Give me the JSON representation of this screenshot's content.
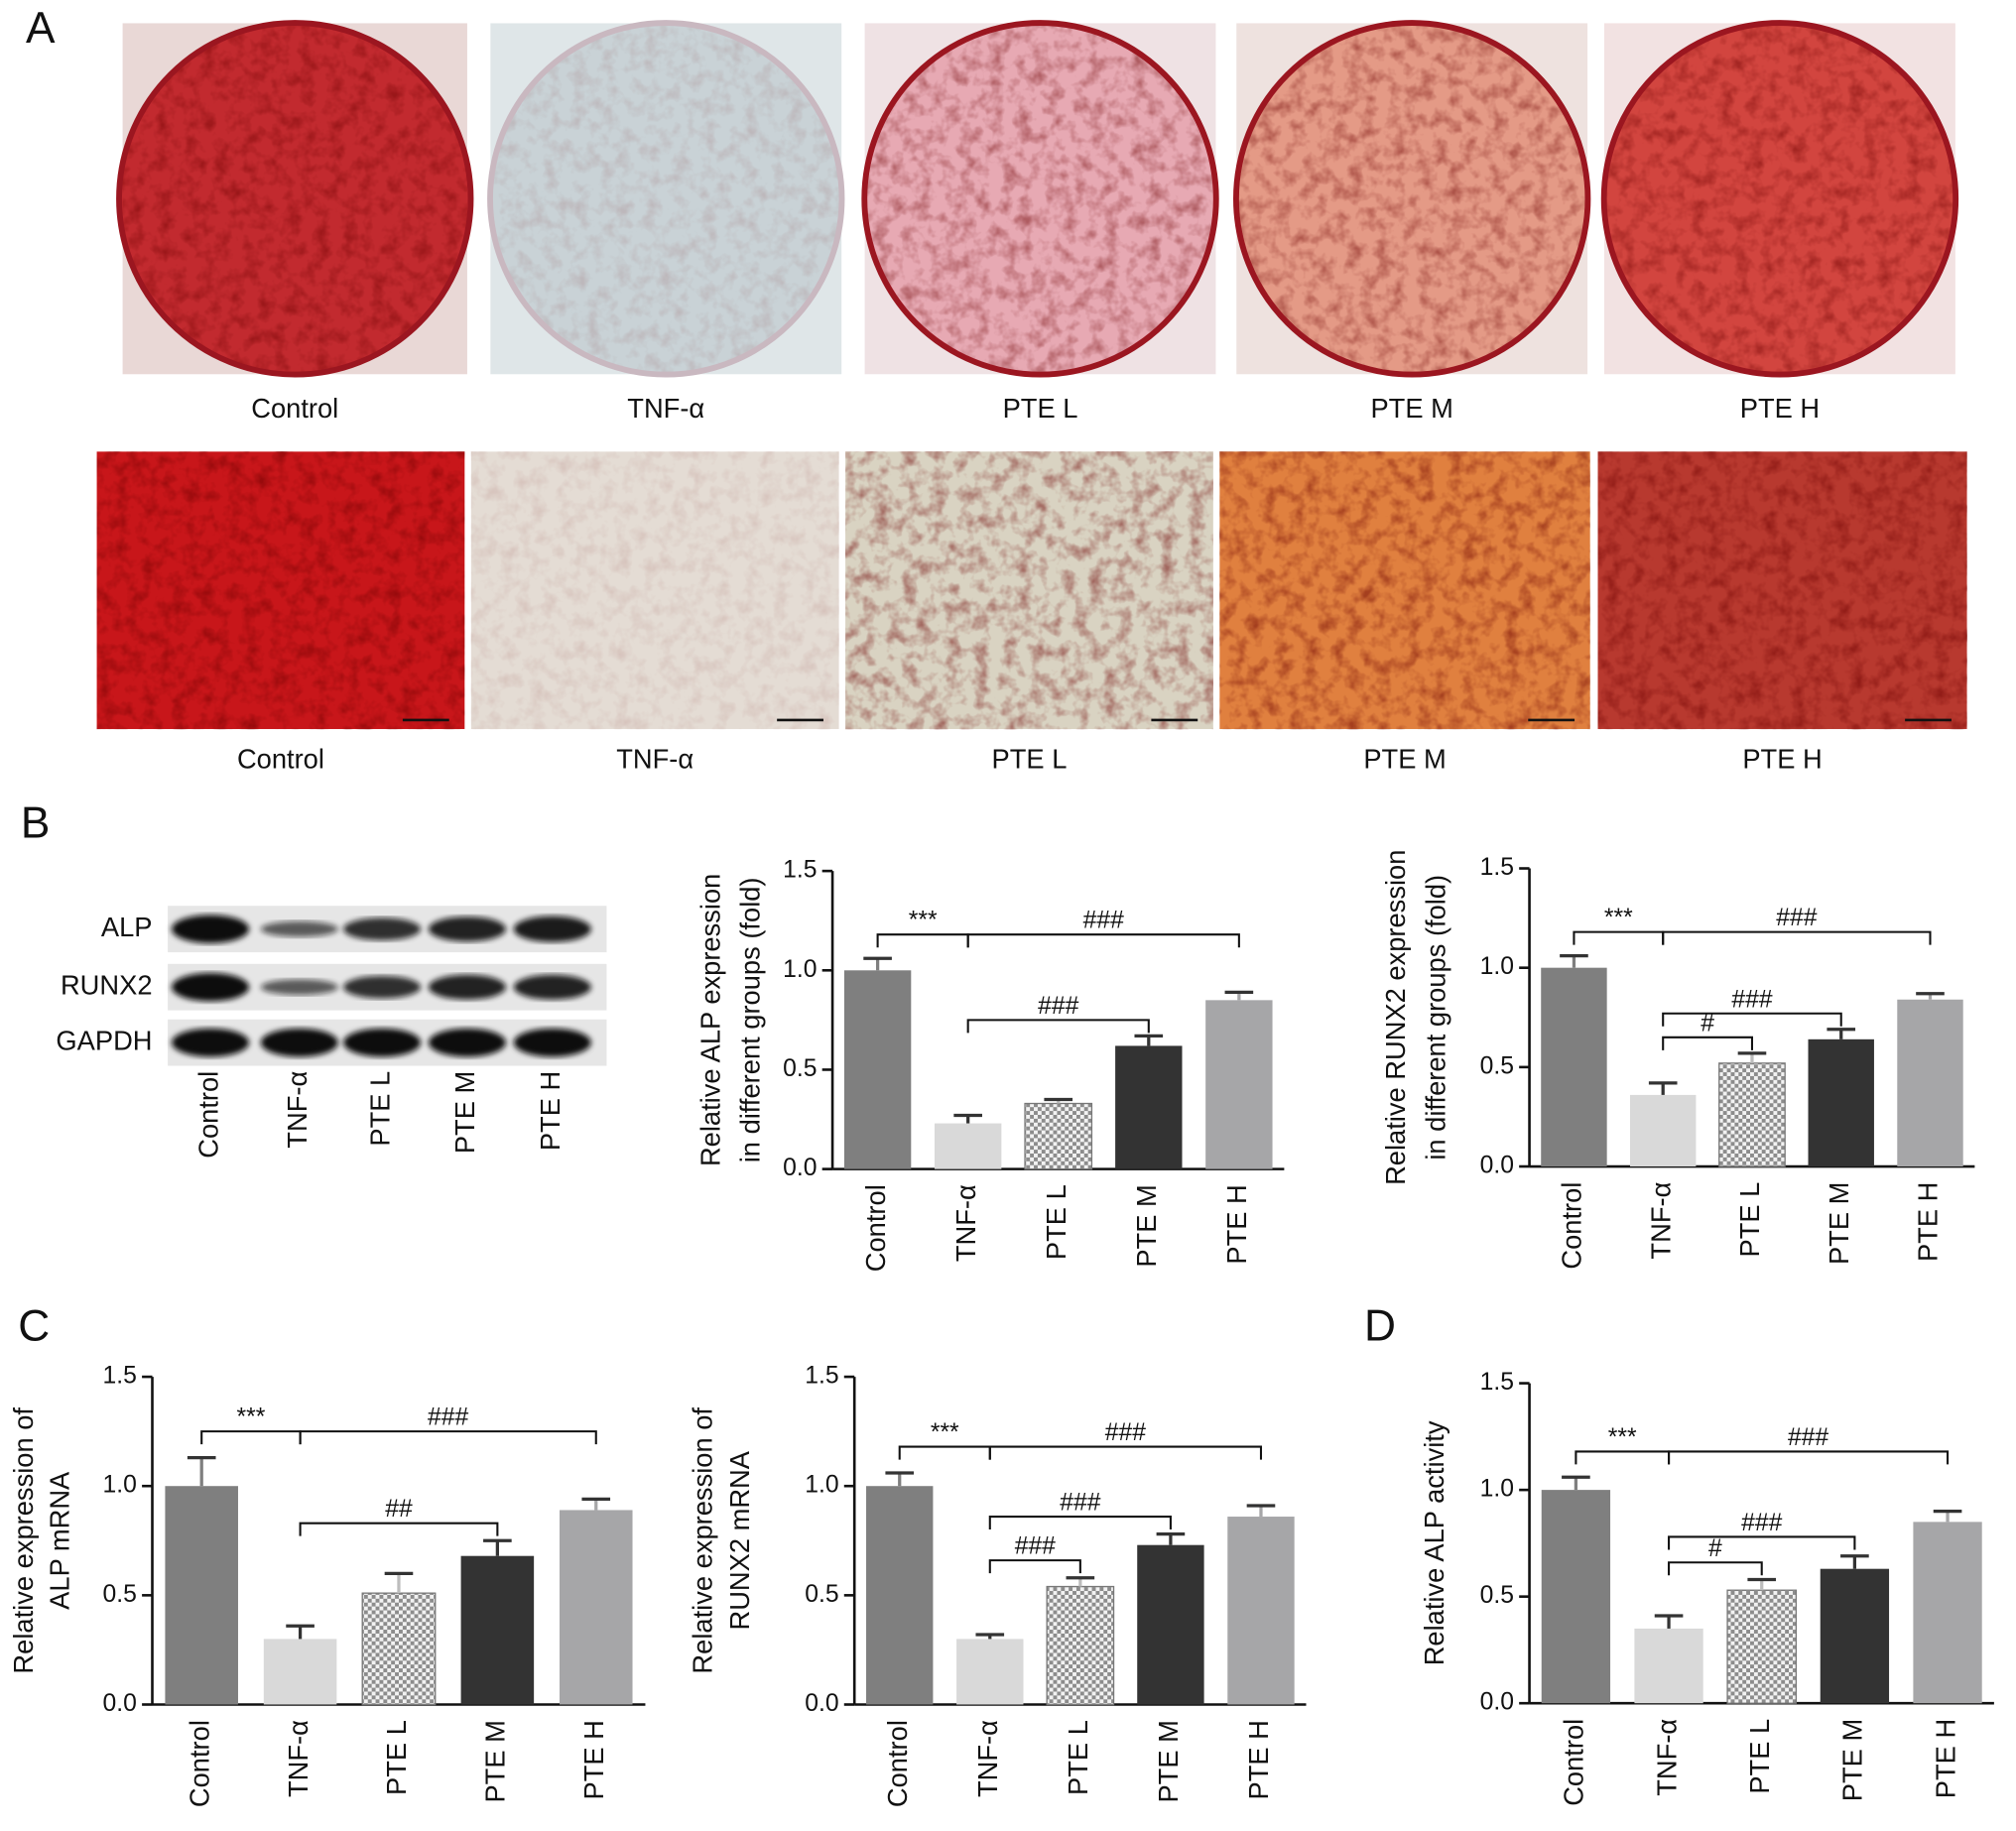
{
  "panel_labels": [
    "A",
    "B",
    "C",
    "D"
  ],
  "photos": {
    "plates": [
      "Control",
      "TNF-α",
      "PTE L",
      "PTE M",
      "PTE H"
    ],
    "micrographs": [
      "Control",
      "TNF-α",
      "PTE L",
      "PTE M",
      "PTE H"
    ]
  },
  "blot": {
    "bands": [
      "ALP",
      "RUNX2",
      "GAPDH"
    ],
    "lanes": [
      "Control",
      "TNF-α",
      "PTE L",
      "PTE M",
      "PTE H"
    ]
  },
  "chart_data": [
    {
      "type": "bar",
      "ylabel": [
        "Relative ALP expression",
        "in different groups (fold)"
      ],
      "categories": [
        "Control",
        "TNF-α",
        "PTE L",
        "PTE M",
        "PTE H"
      ],
      "values": [
        1.0,
        0.23,
        0.33,
        0.62,
        0.85
      ],
      "errors": [
        0.06,
        0.04,
        0.02,
        0.05,
        0.04
      ],
      "colors": [
        "#7f7f7f",
        "#d9d9d9",
        "#bdbdbd",
        "#333333",
        "#a6a6a8"
      ],
      "hatched_index": 2,
      "ylim": [
        0,
        1.5
      ],
      "yticks": [
        {
          "value": 0,
          "label": "0.0"
        },
        0.5,
        {
          "value": 1,
          "label": "1.0"
        },
        1.5
      ],
      "brackets": [
        {
          "span": [
            0,
            1
          ],
          "label": "***"
        },
        {
          "span": [
            1,
            4
          ],
          "label": "###"
        },
        {
          "span": [
            1,
            3
          ],
          "label": "###"
        }
      ]
    },
    {
      "type": "bar",
      "ylabel": [
        "Relative RUNX2 expression",
        "in different groups (fold)"
      ],
      "categories": [
        "Control",
        "TNF-α",
        "PTE L",
        "PTE M",
        "PTE H"
      ],
      "values": [
        1.0,
        0.36,
        0.52,
        0.64,
        0.84
      ],
      "errors": [
        0.06,
        0.06,
        0.05,
        0.05,
        0.03
      ],
      "colors": [
        "#7f7f7f",
        "#d9d9d9",
        "#bdbdbd",
        "#333333",
        "#a6a6a8"
      ],
      "hatched_index": 2,
      "ylim": [
        0,
        1.5
      ],
      "yticks": [
        {
          "value": 0,
          "label": "0.0"
        },
        0.5,
        {
          "value": 1,
          "label": "1.0"
        },
        1.5
      ],
      "brackets": [
        {
          "span": [
            0,
            1
          ],
          "label": "***"
        },
        {
          "span": [
            1,
            4
          ],
          "label": "###"
        },
        {
          "span": [
            1,
            2
          ],
          "label": "#"
        },
        {
          "span": [
            1,
            3
          ],
          "label": "###"
        }
      ]
    },
    {
      "type": "bar",
      "ylabel": [
        "Relative expression of",
        "ALP mRNA"
      ],
      "categories": [
        "Control",
        "TNF-α",
        "PTE L",
        "PTE M",
        "PTE H"
      ],
      "values": [
        1.0,
        0.3,
        0.51,
        0.68,
        0.89
      ],
      "errors": [
        0.13,
        0.06,
        0.09,
        0.07,
        0.05
      ],
      "colors": [
        "#7f7f7f",
        "#d9d9d9",
        "#bdbdbd",
        "#333333",
        "#a6a6a8"
      ],
      "hatched_index": 2,
      "ylim": [
        0,
        1.5
      ],
      "yticks": [
        {
          "value": 0,
          "label": "0.0"
        },
        0.5,
        {
          "value": 1,
          "label": "1.0"
        },
        1.5
      ],
      "brackets": [
        {
          "span": [
            0,
            1
          ],
          "label": "***"
        },
        {
          "span": [
            1,
            4
          ],
          "label": "###"
        },
        {
          "span": [
            1,
            3
          ],
          "label": "##"
        }
      ]
    },
    {
      "type": "bar",
      "ylabel": [
        "Relative expression of",
        "RUNX2 mRNA"
      ],
      "categories": [
        "Control",
        "TNF-α",
        "PTE L",
        "PTE M",
        "PTE H"
      ],
      "values": [
        1.0,
        0.3,
        0.54,
        0.73,
        0.86
      ],
      "errors": [
        0.06,
        0.02,
        0.04,
        0.05,
        0.05
      ],
      "colors": [
        "#7f7f7f",
        "#d9d9d9",
        "#bdbdbd",
        "#333333",
        "#a6a6a8"
      ],
      "hatched_index": 2,
      "ylim": [
        0,
        1.5
      ],
      "yticks": [
        {
          "value": 0,
          "label": "0.0"
        },
        0.5,
        {
          "value": 1,
          "label": "1.0"
        },
        1.5
      ],
      "brackets": [
        {
          "span": [
            0,
            1
          ],
          "label": "***"
        },
        {
          "span": [
            1,
            4
          ],
          "label": "###"
        },
        {
          "span": [
            1,
            2
          ],
          "label": "###"
        },
        {
          "span": [
            1,
            3
          ],
          "label": "###"
        }
      ]
    },
    {
      "type": "bar",
      "ylabel": [
        "Relative ALP activity"
      ],
      "categories": [
        "Control",
        "TNF-α",
        "PTE L",
        "PTE M",
        "PTE H"
      ],
      "values": [
        1.0,
        0.35,
        0.53,
        0.63,
        0.85
      ],
      "errors": [
        0.06,
        0.06,
        0.05,
        0.06,
        0.05
      ],
      "colors": [
        "#7f7f7f",
        "#d9d9d9",
        "#bdbdbd",
        "#333333",
        "#a6a6a8"
      ],
      "hatched_index": 2,
      "ylim": [
        0,
        1.5
      ],
      "yticks": [
        {
          "value": 0,
          "label": "0.0"
        },
        0.5,
        {
          "value": 1,
          "label": "1.0"
        },
        1.5
      ],
      "brackets": [
        {
          "span": [
            0,
            1
          ],
          "label": "***"
        },
        {
          "span": [
            1,
            4
          ],
          "label": "###"
        },
        {
          "span": [
            1,
            2
          ],
          "label": "#"
        },
        {
          "span": [
            1,
            3
          ],
          "label": "###"
        }
      ]
    }
  ]
}
